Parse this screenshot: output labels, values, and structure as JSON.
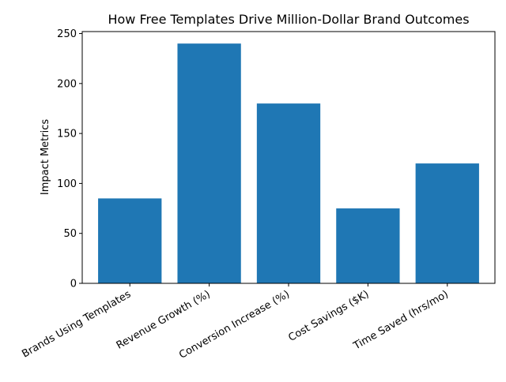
{
  "chart_data": {
    "type": "bar",
    "title": "How Free Templates Drive Million-Dollar Brand Outcomes",
    "xlabel": "",
    "ylabel": "Impact Metrics",
    "categories": [
      "Brands Using Templates",
      "Revenue Growth (%)",
      "Conversion Increase (%)",
      "Cost Savings ($K)",
      "Time Saved (hrs/mo)"
    ],
    "values": [
      85,
      240,
      180,
      75,
      120
    ],
    "ylim": [
      0,
      252
    ],
    "yticks": [
      0,
      50,
      100,
      150,
      200,
      250
    ],
    "grid": false,
    "bar_color": "#1f77b4"
  }
}
